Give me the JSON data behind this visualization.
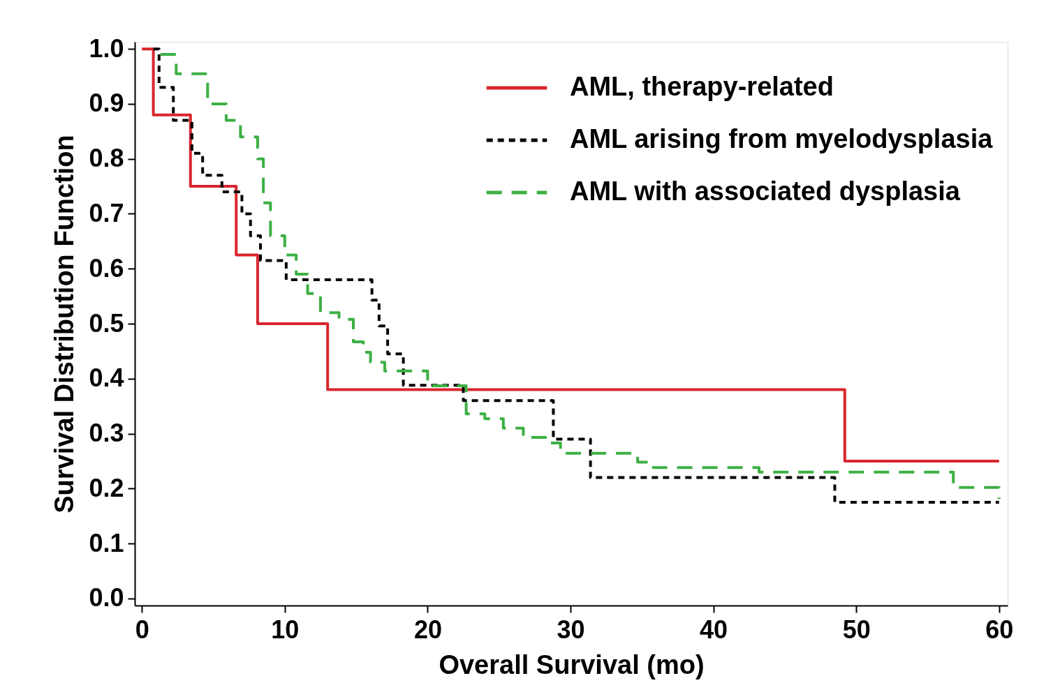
{
  "chart_data": {
    "type": "step",
    "xlabel": "Overall Survival (mo)",
    "ylabel": "Survival Distribution Function",
    "xlim": [
      -0.5,
      60.6
    ],
    "xticks": [
      0,
      10,
      20,
      30,
      40,
      50,
      60
    ],
    "ylim": [
      -0.013,
      1.013
    ],
    "yticks": [
      {
        "value": 0,
        "label": "0.0"
      },
      0.1,
      0.2,
      0.3,
      0.4,
      0.5,
      0.6,
      0.7,
      0.8,
      0.9,
      {
        "value": 1,
        "label": "1.0"
      }
    ],
    "grid": false,
    "legend": "top right",
    "series": [
      {
        "name": "AML, therapy-related",
        "color": "#d9262e",
        "line_style": "solid",
        "x": [
          0,
          0.8,
          3.4,
          6.6,
          8.1,
          13.0,
          49.2,
          60
        ],
        "values": [
          1.0,
          0.88,
          0.75,
          0.625,
          0.5,
          0.38,
          0.25,
          0.25
        ]
      },
      {
        "name": "AML arising from myelodysplasia",
        "color": "#000000",
        "line_style": "dotted",
        "x": [
          0.8,
          1.2,
          2.2,
          3.5,
          4.25,
          5.6,
          7.0,
          7.6,
          8.3,
          10.1,
          16.1,
          16.6,
          17.2,
          18.3,
          22.5,
          28.8,
          31.4,
          48.5,
          60
        ],
        "values": [
          1.0,
          0.93,
          0.87,
          0.81,
          0.77,
          0.74,
          0.7,
          0.66,
          0.615,
          0.58,
          0.543,
          0.496,
          0.445,
          0.388,
          0.36,
          0.29,
          0.22,
          0.175,
          0.175
        ]
      },
      {
        "name": "AML with associated dysplasia",
        "color": "#3cb043",
        "line_style": "dashed",
        "x": [
          1.3,
          2.4,
          4.6,
          5.9,
          6.9,
          8.1,
          8.5,
          9.0,
          10.0,
          10.8,
          11.6,
          12.5,
          13.8,
          14.8,
          15.5,
          16.0,
          17.0,
          20.0,
          22.7,
          24.0,
          25.3,
          26.7,
          28.4,
          29.3,
          34.7,
          35.8,
          43.2,
          56.8,
          60
        ],
        "values": [
          0.99,
          0.955,
          0.9,
          0.87,
          0.84,
          0.8,
          0.72,
          0.66,
          0.625,
          0.59,
          0.555,
          0.52,
          0.508,
          0.467,
          0.448,
          0.43,
          0.414,
          0.387,
          0.336,
          0.327,
          0.31,
          0.293,
          0.283,
          0.264,
          0.248,
          0.238,
          0.23,
          0.202,
          0.181
        ]
      }
    ]
  }
}
